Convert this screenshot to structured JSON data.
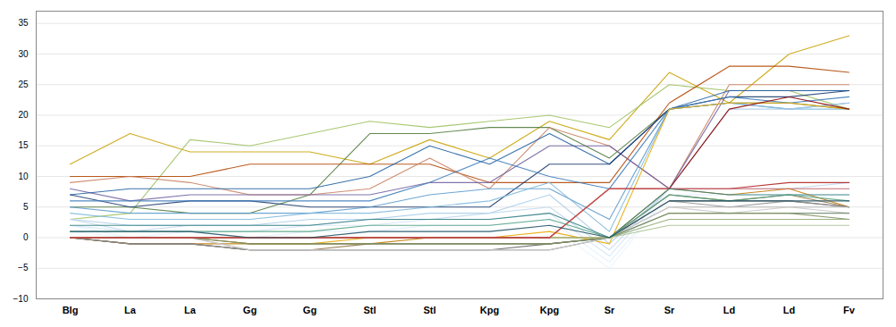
{
  "chart_data": {
    "type": "line",
    "categories": [
      "Blg",
      "La",
      "La",
      "Gg",
      "Gg",
      "Stl",
      "Stl",
      "Kpg",
      "Kpg",
      "Sr",
      "Sr",
      "Ld",
      "Ld",
      "Fv"
    ],
    "ylim": [
      -10,
      37
    ],
    "yticks": [
      -10,
      -5,
      0,
      5,
      10,
      15,
      20,
      25,
      30,
      35
    ],
    "grid": true,
    "series": [
      {
        "color": "#c8a000",
        "values": [
          12,
          17,
          14,
          14,
          14,
          12,
          16,
          13,
          19,
          16,
          27,
          22,
          30,
          33
        ]
      },
      {
        "color": "#9dc060",
        "values": [
          3,
          4,
          16,
          15,
          17,
          19,
          18,
          19,
          20,
          18,
          25,
          24,
          24,
          21
        ]
      },
      {
        "color": "#4e7a3c",
        "values": [
          5,
          5,
          4,
          4,
          7,
          17,
          17,
          18,
          18,
          13,
          21,
          22,
          22,
          21
        ]
      },
      {
        "color": "#b04500",
        "values": [
          10,
          10,
          10,
          12,
          12,
          12,
          12,
          9,
          9,
          9,
          22,
          28,
          28,
          27
        ]
      },
      {
        "color": "#c88060",
        "values": [
          9,
          10,
          9,
          7,
          7,
          8,
          13,
          8,
          18,
          15,
          8,
          25,
          25,
          25
        ]
      },
      {
        "color": "#7060a0",
        "values": [
          8,
          6,
          7,
          7,
          7,
          7,
          9,
          9,
          15,
          15,
          8,
          24,
          24,
          24
        ]
      },
      {
        "color": "#2060a0",
        "values": [
          7,
          8,
          8,
          8,
          8,
          10,
          15,
          12,
          17,
          12,
          21,
          24,
          24,
          24
        ]
      },
      {
        "color": "#1a3a70",
        "values": [
          7,
          5,
          6,
          6,
          5,
          5,
          5,
          5,
          12,
          12,
          21,
          23,
          23,
          24
        ]
      },
      {
        "color": "#3a7ab8",
        "values": [
          6,
          6,
          6,
          6,
          6,
          6,
          9,
          13,
          10,
          8,
          21,
          23,
          22,
          23
        ]
      },
      {
        "color": "#5a9acc",
        "values": [
          5,
          4,
          4,
          4,
          4,
          5,
          7,
          8,
          8,
          3,
          21,
          22,
          21,
          22
        ]
      },
      {
        "color": "#80b8dc",
        "values": [
          4,
          3,
          3,
          3,
          4,
          4,
          5,
          6,
          9,
          1,
          21,
          22,
          21,
          21
        ]
      },
      {
        "color": "#a8cce8",
        "values": [
          3,
          2,
          2,
          2,
          3,
          3,
          4,
          4,
          7,
          -1,
          8,
          21,
          21,
          22
        ]
      },
      {
        "color": "#c0d8f0",
        "values": [
          3,
          1,
          2,
          2,
          2,
          3,
          3,
          4,
          5,
          -2,
          8,
          8,
          8,
          9
        ]
      },
      {
        "color": "#d0e4f8",
        "values": [
          2,
          1,
          1,
          1,
          2,
          2,
          3,
          3,
          4,
          -3,
          8,
          8,
          8,
          8
        ]
      },
      {
        "color": "#e0eeff",
        "values": [
          2,
          0,
          1,
          0,
          1,
          1,
          2,
          2,
          3,
          -4,
          7,
          7,
          7,
          7
        ]
      },
      {
        "color": "#e8f4ff",
        "values": [
          1,
          0,
          0,
          0,
          0,
          1,
          1,
          1,
          2,
          -5,
          7,
          7,
          7,
          7
        ]
      },
      {
        "color": "#e8a800",
        "values": [
          0,
          0,
          0,
          -1,
          -1,
          0,
          0,
          0,
          1,
          -1,
          21,
          22,
          22,
          21
        ]
      },
      {
        "color": "#c07800",
        "values": [
          0,
          -1,
          -1,
          -1,
          -1,
          -1,
          0,
          0,
          0,
          0,
          8,
          7,
          8,
          5
        ]
      },
      {
        "color": "#907040",
        "values": [
          0,
          -1,
          -1,
          -2,
          -2,
          -1,
          -1,
          -1,
          -1,
          0,
          7,
          6,
          7,
          5
        ]
      },
      {
        "color": "#606060",
        "values": [
          0,
          -1,
          -1,
          -2,
          -2,
          -2,
          -2,
          -2,
          -1,
          0,
          6,
          6,
          6,
          5
        ]
      },
      {
        "color": "#909090",
        "values": [
          0,
          -1,
          -1,
          -2,
          -2,
          -2,
          -2,
          -2,
          -2,
          0,
          6,
          5,
          6,
          5
        ]
      },
      {
        "color": "#b0b0b0",
        "values": [
          0,
          0,
          0,
          -2,
          -2,
          -2,
          -2,
          -2,
          -2,
          0,
          5,
          5,
          5,
          5
        ]
      },
      {
        "color": "#c8c8c8",
        "values": [
          0,
          0,
          0,
          -2,
          -2,
          -2,
          -2,
          -2,
          -2,
          0,
          5,
          4,
          5,
          4
        ]
      },
      {
        "color": "#708870",
        "values": [
          0,
          0,
          0,
          -1,
          -1,
          -1,
          -1,
          -1,
          -1,
          0,
          4,
          4,
          4,
          4
        ]
      },
      {
        "color": "#809060",
        "values": [
          0,
          0,
          0,
          -1,
          -1,
          -1,
          -1,
          -1,
          -1,
          0,
          4,
          4,
          4,
          3
        ]
      },
      {
        "color": "#90a870",
        "values": [
          0,
          0,
          0,
          0,
          0,
          0,
          0,
          0,
          0,
          0,
          3,
          3,
          3,
          3
        ]
      },
      {
        "color": "#a8c090",
        "values": [
          0,
          0,
          0,
          0,
          0,
          0,
          0,
          0,
          0,
          0,
          2,
          2,
          2,
          2
        ]
      },
      {
        "color": "#8b0000",
        "values": [
          0,
          0,
          0,
          0,
          0,
          0,
          0,
          0,
          0,
          8,
          8,
          21,
          23,
          21
        ]
      },
      {
        "color": "#b02020",
        "values": [
          0,
          0,
          0,
          0,
          0,
          0,
          0,
          0,
          0,
          8,
          8,
          8,
          9,
          9
        ]
      },
      {
        "color": "#d06060",
        "values": [
          0,
          0,
          0,
          0,
          0,
          0,
          0,
          0,
          0,
          8,
          8,
          8,
          8,
          8
        ]
      },
      {
        "color": "#308080",
        "values": [
          2,
          2,
          2,
          2,
          2,
          3,
          3,
          3,
          4,
          0,
          8,
          7,
          7,
          7
        ]
      },
      {
        "color": "#50a080",
        "values": [
          1,
          1,
          1,
          1,
          1,
          2,
          2,
          2,
          3,
          0,
          7,
          6,
          7,
          6
        ]
      },
      {
        "color": "#205060",
        "values": [
          1,
          1,
          1,
          0,
          0,
          1,
          1,
          1,
          2,
          0,
          6,
          6,
          6,
          6
        ]
      }
    ]
  }
}
